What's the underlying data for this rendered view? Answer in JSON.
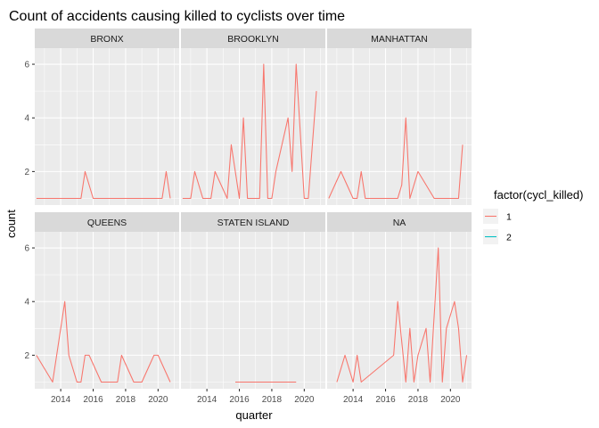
{
  "chart_data": {
    "type": "line",
    "title": "Count of accidents causing killed to cyclists over time",
    "xlabel": "quarter",
    "ylabel": "count",
    "xlim": [
      2012.4,
      2021.3
    ],
    "ylim": [
      0.75,
      6.6
    ],
    "x_ticks": [
      2014,
      2016,
      2018,
      2020
    ],
    "y_ticks": [
      2,
      4,
      6
    ],
    "grid": true,
    "legend": {
      "title": "factor(cycl_killed)",
      "position": "right",
      "entries": [
        {
          "label": "1",
          "color": "#F8766D"
        },
        {
          "label": "2",
          "color": "#00BFC4"
        }
      ]
    },
    "facets": [
      {
        "name": "BRONX",
        "series": [
          {
            "key": "1",
            "x": [
              2012.5,
              2015.25,
              2015.5,
              2016.0,
              2020.25,
              2020.5,
              2020.75
            ],
            "y": [
              1,
              1,
              2,
              1,
              1,
              2,
              1
            ]
          }
        ]
      },
      {
        "name": "BROOKLYN",
        "series": [
          {
            "key": "1",
            "x": [
              2012.5,
              2013.0,
              2013.25,
              2013.75,
              2014.25,
              2014.5,
              2015.25,
              2015.5,
              2016.0,
              2016.25,
              2016.5,
              2017.25,
              2017.5,
              2017.75,
              2018.0,
              2018.25,
              2019.0,
              2019.25,
              2019.5,
              2020.0,
              2020.25,
              2020.75
            ],
            "y": [
              1,
              1,
              2,
              1,
              1,
              2,
              1,
              3,
              1,
              4,
              1,
              1,
              6,
              1,
              1,
              2,
              4,
              2,
              6,
              1,
              1,
              5
            ]
          }
        ]
      },
      {
        "name": "MANHATTAN",
        "series": [
          {
            "key": "1",
            "x": [
              2012.5,
              2013.25,
              2014.0,
              2014.25,
              2014.5,
              2014.75,
              2016.75,
              2017.0,
              2017.25,
              2017.5,
              2018.0,
              2019.0,
              2020.5,
              2020.75
            ],
            "y": [
              1,
              2,
              1,
              1,
              2,
              1,
              1,
              1.5,
              4,
              1,
              2,
              1,
              1,
              3
            ]
          }
        ]
      },
      {
        "name": "QUEENS",
        "series": [
          {
            "key": "1",
            "x": [
              2012.5,
              2013.5,
              2014.25,
              2014.5,
              2015.0,
              2015.25,
              2015.5,
              2015.75,
              2016.5,
              2017.5,
              2017.75,
              2018.5,
              2019.0,
              2019.75,
              2020.0,
              2020.75
            ],
            "y": [
              2,
              1,
              4,
              2,
              1,
              1,
              2,
              2,
              1,
              1,
              2,
              1,
              1,
              2,
              2,
              1
            ]
          }
        ]
      },
      {
        "name": "STATEN ISLAND",
        "series": [
          {
            "key": "1",
            "x": [
              2015.75,
              2019.5
            ],
            "y": [
              1,
              1
            ]
          }
        ]
      },
      {
        "name": "NA",
        "series": [
          {
            "key": "1",
            "x": [
              2013.0,
              2013.5,
              2014.0,
              2014.25,
              2014.5,
              2016.5,
              2016.75,
              2017.25,
              2017.5,
              2017.75,
              2018.0,
              2018.5,
              2018.75,
              2019.25,
              2019.5,
              2019.75,
              2020.25,
              2020.5,
              2020.75,
              2021.0
            ],
            "y": [
              1,
              2,
              1,
              2,
              1,
              2,
              4,
              1,
              3,
              1,
              2,
              3,
              1,
              6,
              1,
              3,
              4,
              3,
              1,
              2
            ]
          }
        ]
      }
    ]
  }
}
